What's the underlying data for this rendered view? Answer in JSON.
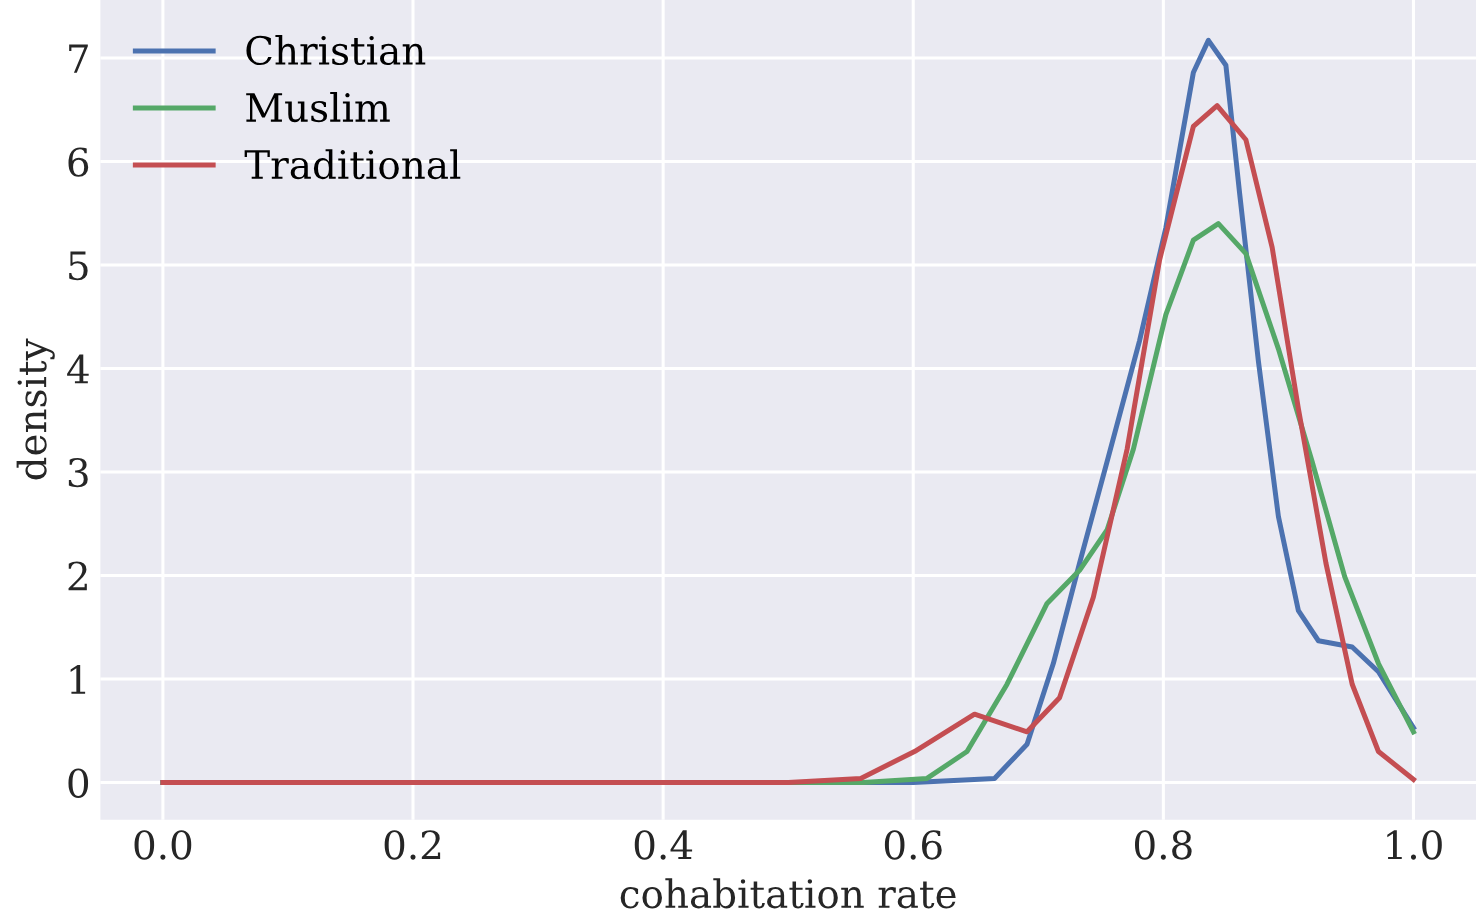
{
  "chart_data": {
    "type": "line",
    "xlabel": "cohabitation rate",
    "ylabel": "density",
    "xlim": [
      -0.05,
      1.05
    ],
    "ylim": [
      -0.36,
      7.56
    ],
    "xticks": [
      {
        "value": 0,
        "label": "0.0"
      },
      {
        "value": 0.2,
        "label": "0.2"
      },
      {
        "value": 0.4,
        "label": "0.4"
      },
      {
        "value": 0.6,
        "label": "0.6"
      },
      {
        "value": 0.8,
        "label": "0.8"
      },
      {
        "value": 1,
        "label": "1.0"
      }
    ],
    "yticks": [
      0,
      1,
      2,
      3,
      4,
      5,
      6,
      7
    ],
    "grid": true,
    "legend": "top left",
    "marker": "none",
    "line_style": "solid",
    "series": [
      {
        "name": "Christian",
        "color": "#4c72b0",
        "x": [
          0,
          0.6,
          0.665,
          0.691,
          0.712,
          0.733,
          0.755,
          0.781,
          0.802,
          0.824,
          0.836,
          0.85,
          0.861,
          0.876,
          0.892,
          0.908,
          0.924,
          0.951,
          0.972,
          1.0
        ],
        "values": [
          0,
          0,
          0.04,
          0.37,
          1.15,
          2.12,
          3.1,
          4.27,
          5.36,
          6.86,
          7.17,
          6.93,
          5.69,
          4.07,
          2.57,
          1.66,
          1.37,
          1.31,
          1.07,
          0.53
        ]
      },
      {
        "name": "Muslim",
        "color": "#55a868",
        "x": [
          0,
          0.56,
          0.611,
          0.643,
          0.675,
          0.707,
          0.733,
          0.755,
          0.776,
          0.802,
          0.824,
          0.844,
          0.866,
          0.892,
          0.919,
          0.945,
          0.972,
          1.0
        ],
        "values": [
          0,
          0,
          0.04,
          0.3,
          0.95,
          1.73,
          2.05,
          2.44,
          3.22,
          4.52,
          5.24,
          5.4,
          5.11,
          4.19,
          3.1,
          1.99,
          1.15,
          0.49
        ]
      },
      {
        "name": "Traditional",
        "color": "#c44e52",
        "x": [
          0,
          0.5,
          0.558,
          0.601,
          0.649,
          0.691,
          0.717,
          0.744,
          0.771,
          0.797,
          0.824,
          0.843,
          0.866,
          0.887,
          0.908,
          0.93,
          0.951,
          0.972,
          1.0
        ],
        "values": [
          0,
          0,
          0.04,
          0.3,
          0.66,
          0.49,
          0.82,
          1.79,
          3.22,
          5.05,
          6.34,
          6.54,
          6.21,
          5.17,
          3.61,
          2.12,
          0.95,
          0.3,
          0.03
        ]
      }
    ]
  }
}
